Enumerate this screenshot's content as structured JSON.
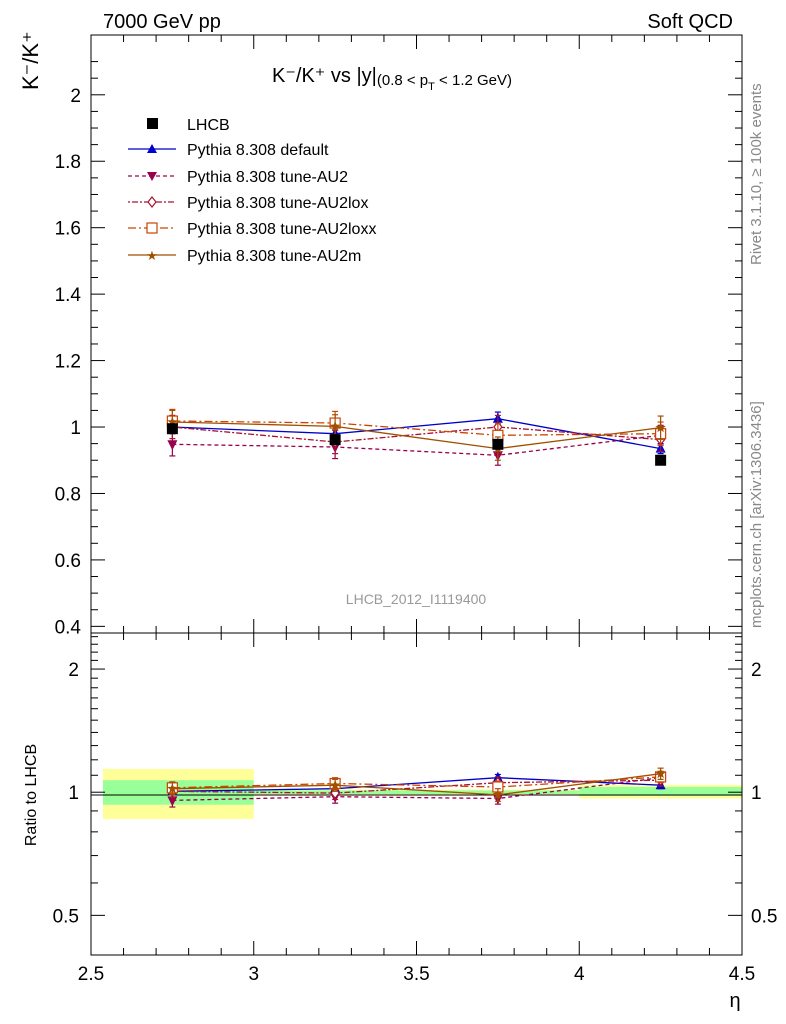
{
  "header": {
    "left": "7000 GeV pp",
    "right": "Soft QCD"
  },
  "side_labels": {
    "rivet": "Rivet 3.1.10, ≥ 100k events",
    "mcplots": "mcplots.cern.ch [arXiv:1306.3436]"
  },
  "watermark": "LHCB_2012_I1119400",
  "legend": {
    "data": "LHCB",
    "mc": [
      "Pythia 8.308 default",
      "Pythia 8.308 tune-AU2",
      "Pythia 8.308 tune-AU2lox",
      "Pythia 8.308 tune-AU2loxx",
      "Pythia 8.308 tune-AU2m"
    ]
  },
  "colors": {
    "lhcb": "#000000",
    "default": "#0000cc",
    "AU2": "#99004d",
    "AU2lox": "#aa1133",
    "AU2loxx": "#cc4400",
    "AU2m": "#a05000",
    "band_inner": "#99ff99",
    "band_outer": "#ffff99"
  },
  "chart_data": [
    {
      "type": "line",
      "title": "K⁻/K⁺ vs |y|(0.8 < p_T < 1.2 GeV)",
      "title_main": "K⁻/K⁺ vs |y|",
      "title_sub": "(0.8 < p",
      "title_sub_sub": "T",
      "title_sub_end": " < 1.2 GeV)",
      "ylabel": "K⁻/K⁺",
      "xlim": [
        2.5,
        4.5
      ],
      "ylim": [
        0.38,
        2.18
      ],
      "yticks": [
        0.4,
        0.6,
        0.8,
        1,
        1.2,
        1.4,
        1.6,
        1.8,
        2
      ],
      "ytick_labels": [
        "0.4",
        "0.6",
        "0.8",
        "1",
        "1.2",
        "1.4",
        "1.6",
        "1.8",
        "2"
      ],
      "x_bins": [
        [
          2.5,
          3.0
        ],
        [
          3.0,
          3.5
        ],
        [
          3.5,
          4.0
        ],
        [
          4.0,
          4.5
        ]
      ],
      "x": [
        2.75,
        3.25,
        3.75,
        4.25
      ],
      "data": {
        "name": "LHCB",
        "values": [
          0.995,
          0.962,
          0.948,
          0.9
        ]
      },
      "series": [
        {
          "name": "Pythia 8.308 default",
          "values": [
            1.0,
            0.98,
            1.025,
            0.935
          ],
          "errors": [
            0.02,
            0.02,
            0.02,
            0.015
          ]
        },
        {
          "name": "Pythia 8.308 tune-AU2",
          "values": [
            0.948,
            0.94,
            0.915,
            0.975
          ],
          "errors": [
            0.035,
            0.035,
            0.03,
            0.03
          ]
        },
        {
          "name": "Pythia 8.308 tune-AU2lox",
          "values": [
            1.0,
            0.955,
            1.0,
            0.962
          ],
          "errors": [
            0.035,
            0.035,
            0.035,
            0.035
          ]
        },
        {
          "name": "Pythia 8.308 tune-AU2loxx",
          "values": [
            1.018,
            1.012,
            0.975,
            0.98
          ],
          "errors": [
            0.035,
            0.035,
            0.035,
            0.035
          ]
        },
        {
          "name": "Pythia 8.308 tune-AU2m",
          "values": [
            1.015,
            1.002,
            0.935,
            0.998
          ],
          "errors": [
            0.035,
            0.035,
            0.035,
            0.035
          ]
        }
      ]
    },
    {
      "type": "line",
      "ylabel": "Ratio to LHCB",
      "xlabel": "η",
      "log_y": true,
      "xlim": [
        2.5,
        4.5
      ],
      "ylim": [
        0.4,
        2.45
      ],
      "yticks": [
        0.5,
        1,
        2
      ],
      "ytick_labels": [
        "0.5",
        "1",
        "2"
      ],
      "xticks": [
        2.5,
        3,
        3.5,
        4,
        4.5
      ],
      "xtick_labels": [
        "2.5",
        "3",
        "3.5",
        "4",
        "4.5"
      ],
      "x": [
        2.75,
        3.25,
        3.75,
        4.25
      ],
      "bands": [
        {
          "x": [
            2.5,
            3.0
          ],
          "inner": [
            0.932,
            1.07
          ],
          "outer": [
            0.86,
            1.14
          ]
        },
        {
          "x": [
            3.0,
            3.5
          ],
          "inner": [
            0.99,
            1.01
          ],
          "outer": [
            0.985,
            1.015
          ]
        },
        {
          "x": [
            3.5,
            4.0
          ],
          "inner": [
            0.99,
            1.01
          ],
          "outer": [
            0.985,
            1.015
          ]
        },
        {
          "x": [
            4.0,
            4.5
          ],
          "inner": [
            0.98,
            1.03
          ],
          "outer": [
            0.965,
            1.042
          ]
        }
      ],
      "series": [
        {
          "name": "Pythia 8.308 default",
          "values": [
            1.005,
            1.02,
            1.085,
            1.04
          ],
          "errors": [
            0.02,
            0.02,
            0.02,
            0.02
          ]
        },
        {
          "name": "Pythia 8.308 tune-AU2",
          "values": [
            0.955,
            0.975,
            0.965,
            1.085
          ],
          "errors": [
            0.035,
            0.035,
            0.03,
            0.03
          ]
        },
        {
          "name": "Pythia 8.308 tune-AU2lox",
          "values": [
            1.005,
            0.995,
            1.055,
            1.07
          ],
          "errors": [
            0.035,
            0.035,
            0.035,
            0.035
          ]
        },
        {
          "name": "Pythia 8.308 tune-AU2loxx",
          "values": [
            1.025,
            1.05,
            1.03,
            1.09
          ],
          "errors": [
            0.035,
            0.035,
            0.035,
            0.035
          ]
        },
        {
          "name": "Pythia 8.308 tune-AU2m",
          "values": [
            1.02,
            1.04,
            0.985,
            1.11
          ],
          "errors": [
            0.035,
            0.035,
            0.035,
            0.035
          ]
        }
      ]
    }
  ]
}
